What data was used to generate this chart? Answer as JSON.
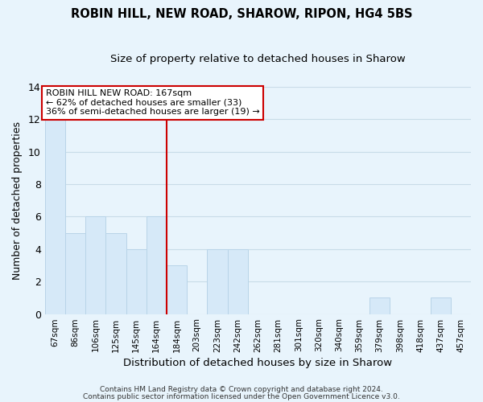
{
  "title": "ROBIN HILL, NEW ROAD, SHAROW, RIPON, HG4 5BS",
  "subtitle": "Size of property relative to detached houses in Sharow",
  "xlabel": "Distribution of detached houses by size in Sharow",
  "ylabel": "Number of detached properties",
  "footer_lines": [
    "Contains HM Land Registry data © Crown copyright and database right 2024.",
    "Contains public sector information licensed under the Open Government Licence v3.0."
  ],
  "bin_labels": [
    "67sqm",
    "86sqm",
    "106sqm",
    "125sqm",
    "145sqm",
    "164sqm",
    "184sqm",
    "203sqm",
    "223sqm",
    "242sqm",
    "262sqm",
    "281sqm",
    "301sqm",
    "320sqm",
    "340sqm",
    "359sqm",
    "379sqm",
    "398sqm",
    "418sqm",
    "437sqm",
    "457sqm"
  ],
  "bar_heights": [
    12,
    5,
    6,
    5,
    4,
    6,
    3,
    0,
    4,
    4,
    0,
    0,
    0,
    0,
    0,
    0,
    1,
    0,
    0,
    1,
    0
  ],
  "bar_color": "#d6e9f8",
  "bar_edge_color": "#b8d4e8",
  "vline_x": 5.5,
  "vline_color": "#cc0000",
  "annotation_title": "ROBIN HILL NEW ROAD: 167sqm",
  "annotation_line1": "← 62% of detached houses are smaller (33)",
  "annotation_line2": "36% of semi-detached houses are larger (19) →",
  "annotation_box_facecolor": "#ffffff",
  "annotation_box_edgecolor": "#cc0000",
  "ylim": [
    0,
    14
  ],
  "yticks": [
    0,
    2,
    4,
    6,
    8,
    10,
    12,
    14
  ],
  "background_color": "#e8f4fc",
  "grid_color": "#c8dce8",
  "title_fontsize": 10.5,
  "subtitle_fontsize": 9.5
}
